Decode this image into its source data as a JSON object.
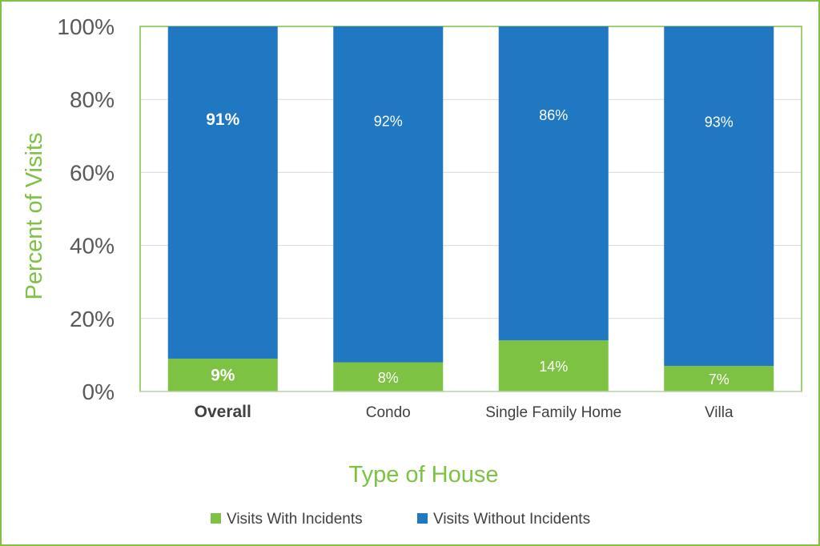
{
  "chart_data": {
    "type": "bar",
    "stacked": true,
    "percent_stacked": true,
    "title": "",
    "xlabel": "Type of House",
    "ylabel": "Percent of Visits",
    "ylim": [
      0,
      100
    ],
    "y_ticks": [
      "0%",
      "20%",
      "40%",
      "60%",
      "80%",
      "100%"
    ],
    "categories": [
      "Overall",
      "Condo",
      "Single Family Home",
      "Villa"
    ],
    "series": [
      {
        "name": "Visits With Incidents",
        "color": "#7dc243",
        "values": [
          9,
          8,
          14,
          7
        ],
        "labels": [
          "9%",
          "8%",
          "14%",
          "7%"
        ]
      },
      {
        "name": "Visits Without Incidents",
        "color": "#1f78c1",
        "values": [
          91,
          92,
          86,
          93
        ],
        "labels": [
          "91%",
          "92%",
          "86%",
          "93%"
        ]
      }
    ],
    "grid": true,
    "legend_position": "bottom",
    "emphasized_category": "Overall"
  }
}
